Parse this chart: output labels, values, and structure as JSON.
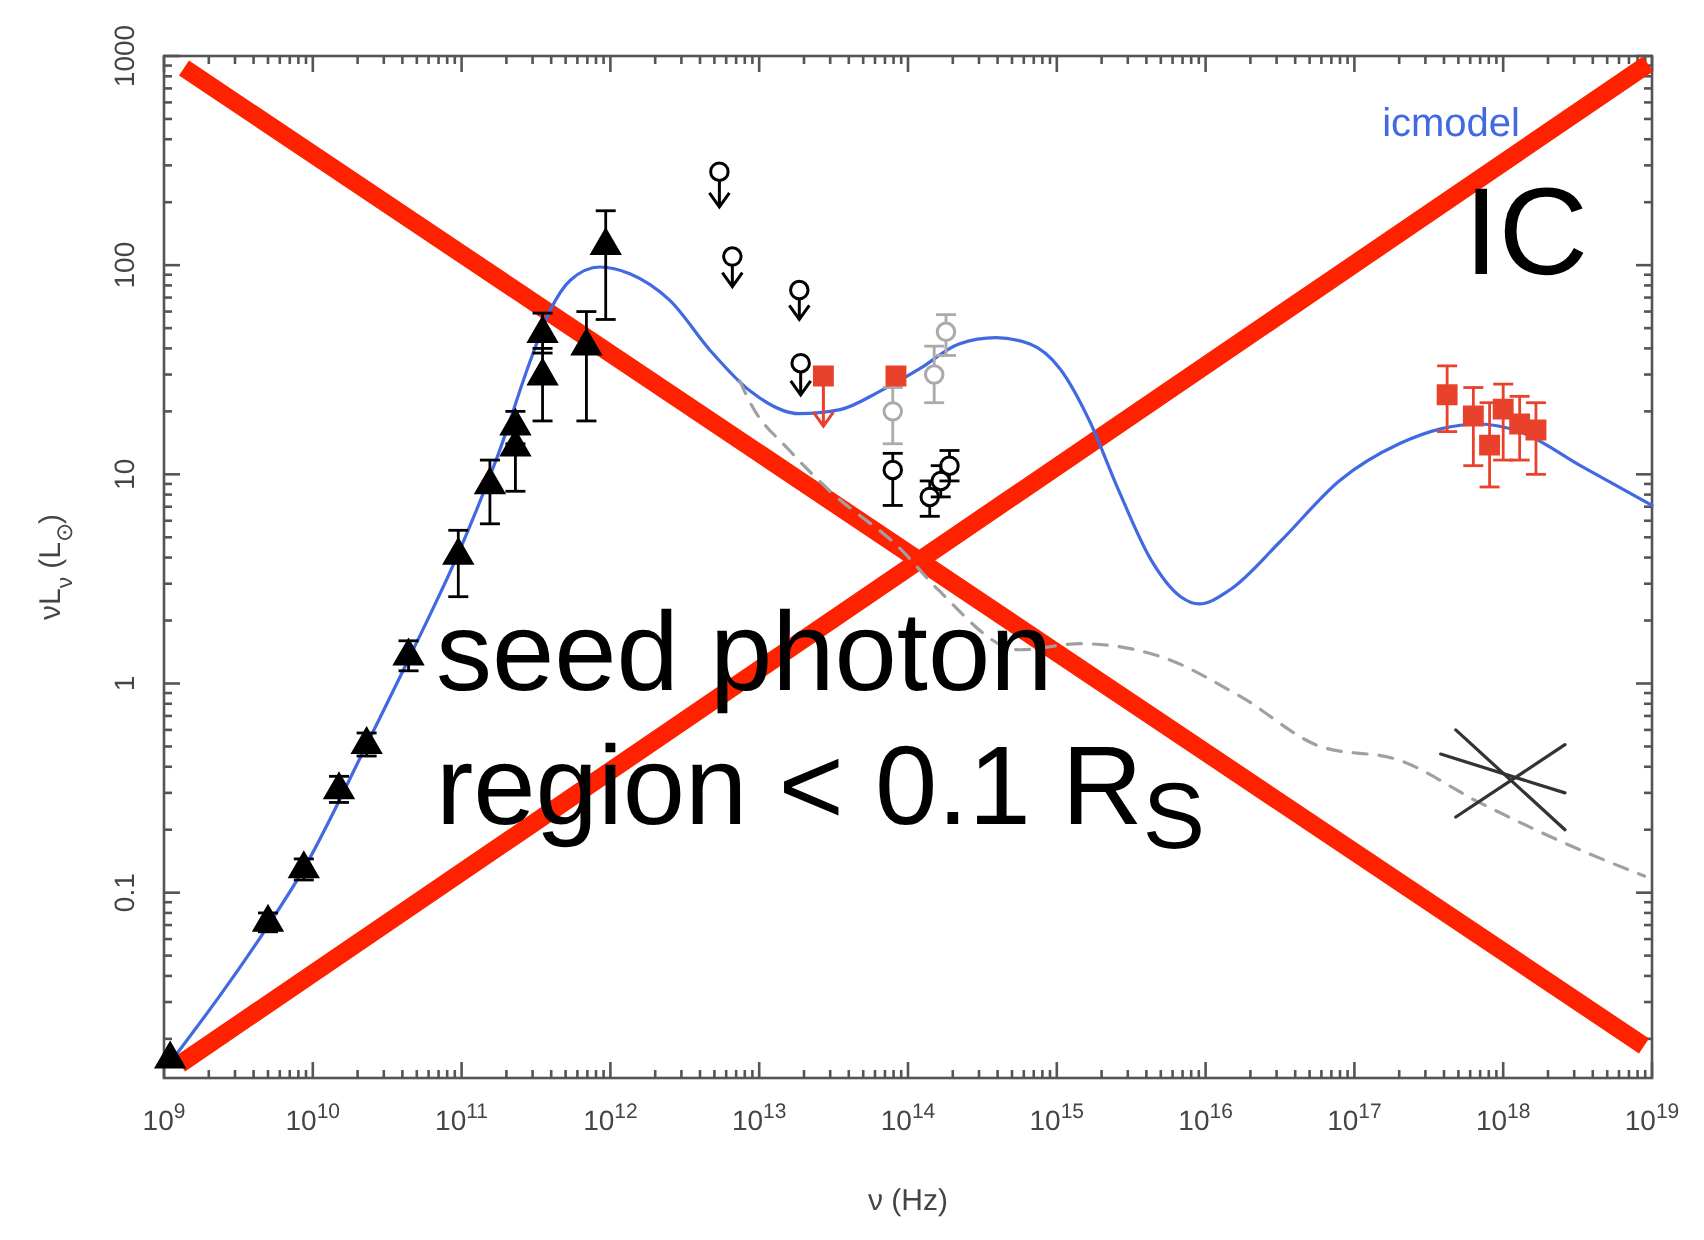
{
  "chart_data": {
    "type": "scatter",
    "xlabel": "ν (Hz)",
    "ylabel": "νL$_{ν}$ (L$_{⊙}$)",
    "log": "xy",
    "grid": false,
    "xlim": [
      1000000000.0,
      1e+19
    ],
    "ylim": [
      0.013,
      1000
    ],
    "xticks": [
      {
        "value": 1000000000.0,
        "label": "10$^{9}$"
      },
      {
        "value": 10000000000.0,
        "label": "10$^{10}$"
      },
      {
        "value": 100000000000.0,
        "label": "10$^{11}$"
      },
      {
        "value": 1000000000000.0,
        "label": "10$^{12}$"
      },
      {
        "value": 10000000000000.0,
        "label": "10$^{13}$"
      },
      {
        "value": 100000000000000.0,
        "label": "10$^{14}$"
      },
      {
        "value": 1000000000000000.0,
        "label": "10$^{15}$"
      },
      {
        "value": 1e+16,
        "label": "10$^{16}$"
      },
      {
        "value": 1e+17,
        "label": "10$^{17}$"
      },
      {
        "value": 1e+18,
        "label": "10$^{18}$"
      },
      {
        "value": 1e+19,
        "label": "10$^{19}$"
      },
      {
        "value": 2000000000.0,
        "label": null
      },
      {
        "value": 3000000000.0,
        "label": null
      },
      {
        "value": 4000000000.0,
        "label": null
      },
      {
        "value": 5000000000.0,
        "label": null
      },
      {
        "value": 6000000000.0,
        "label": null
      },
      {
        "value": 7000000000.0,
        "label": null
      },
      {
        "value": 8000000000.0,
        "label": null
      },
      {
        "value": 9000000000.0,
        "label": null
      },
      {
        "value": 20000000000.0,
        "label": null
      },
      {
        "value": 30000000000.0,
        "label": null
      },
      {
        "value": 40000000000.0,
        "label": null
      },
      {
        "value": 50000000000.0,
        "label": null
      },
      {
        "value": 60000000000.0,
        "label": null
      },
      {
        "value": 70000000000.0,
        "label": null
      },
      {
        "value": 80000000000.0,
        "label": null
      },
      {
        "value": 90000000000.0,
        "label": null
      },
      {
        "value": 200000000000.0,
        "label": null
      },
      {
        "value": 300000000000.0,
        "label": null
      },
      {
        "value": 400000000000.0,
        "label": null
      },
      {
        "value": 500000000000.0,
        "label": null
      },
      {
        "value": 600000000000.0,
        "label": null
      },
      {
        "value": 700000000000.0,
        "label": null
      },
      {
        "value": 800000000000.0,
        "label": null
      },
      {
        "value": 900000000000.0,
        "label": null
      },
      {
        "value": 2000000000000.0,
        "label": null
      },
      {
        "value": 3000000000000.0,
        "label": null
      },
      {
        "value": 4000000000000.0,
        "label": null
      },
      {
        "value": 5000000000000.0,
        "label": null
      },
      {
        "value": 6000000000000.0,
        "label": null
      },
      {
        "value": 7000000000000.0,
        "label": null
      },
      {
        "value": 8000000000000.0,
        "label": null
      },
      {
        "value": 9000000000000.0,
        "label": null
      },
      {
        "value": 20000000000000.0,
        "label": null
      },
      {
        "value": 30000000000000.0,
        "label": null
      },
      {
        "value": 40000000000000.0,
        "label": null
      },
      {
        "value": 50000000000000.0,
        "label": null
      },
      {
        "value": 60000000000000.0,
        "label": null
      },
      {
        "value": 70000000000000.0,
        "label": null
      },
      {
        "value": 80000000000000.0,
        "label": null
      },
      {
        "value": 90000000000000.0,
        "label": null
      },
      {
        "value": 200000000000000.0,
        "label": null
      },
      {
        "value": 300000000000000.0,
        "label": null
      },
      {
        "value": 400000000000000.0,
        "label": null
      },
      {
        "value": 500000000000000.0,
        "label": null
      },
      {
        "value": 600000000000000.0,
        "label": null
      },
      {
        "value": 700000000000000.0,
        "label": null
      },
      {
        "value": 800000000000000.0,
        "label": null
      },
      {
        "value": 900000000000000.0,
        "label": null
      },
      {
        "value": 2000000000000000.0,
        "label": null
      },
      {
        "value": 3000000000000000.0,
        "label": null
      },
      {
        "value": 4000000000000000.0,
        "label": null
      },
      {
        "value": 5000000000000000.0,
        "label": null
      },
      {
        "value": 6000000000000000.0,
        "label": null
      },
      {
        "value": 7000000000000000.0,
        "label": null
      },
      {
        "value": 8000000000000000.0,
        "label": null
      },
      {
        "value": 9000000000000000.0,
        "label": null
      },
      {
        "value": 2e+16,
        "label": null
      },
      {
        "value": 3e+16,
        "label": null
      },
      {
        "value": 4e+16,
        "label": null
      },
      {
        "value": 5e+16,
        "label": null
      },
      {
        "value": 6e+16,
        "label": null
      },
      {
        "value": 7e+16,
        "label": null
      },
      {
        "value": 8e+16,
        "label": null
      },
      {
        "value": 9e+16,
        "label": null
      },
      {
        "value": 2e+17,
        "label": null
      },
      {
        "value": 3e+17,
        "label": null
      },
      {
        "value": 4e+17,
        "label": null
      },
      {
        "value": 5e+17,
        "label": null
      },
      {
        "value": 6e+17,
        "label": null
      },
      {
        "value": 7e+17,
        "label": null
      },
      {
        "value": 8e+17,
        "label": null
      },
      {
        "value": 9e+17,
        "label": null
      },
      {
        "value": 2e+18,
        "label": null
      },
      {
        "value": 3e+18,
        "label": null
      },
      {
        "value": 4e+18,
        "label": null
      },
      {
        "value": 5e+18,
        "label": null
      },
      {
        "value": 6e+18,
        "label": null
      },
      {
        "value": 7e+18,
        "label": null
      },
      {
        "value": 8e+18,
        "label": null
      },
      {
        "value": 9e+18,
        "label": null
      }
    ],
    "yticks": [
      0.1,
      1,
      10,
      100,
      1000,
      {
        "value": 0.02,
        "label": null
      },
      {
        "value": 0.03,
        "label": null
      },
      {
        "value": 0.04,
        "label": null
      },
      {
        "value": 0.05,
        "label": null
      },
      {
        "value": 0.06,
        "label": null
      },
      {
        "value": 0.07,
        "label": null
      },
      {
        "value": 0.08,
        "label": null
      },
      {
        "value": 0.09,
        "label": null
      },
      {
        "value": 0.2,
        "label": null
      },
      {
        "value": 0.3,
        "label": null
      },
      {
        "value": 0.4,
        "label": null
      },
      {
        "value": 0.5,
        "label": null
      },
      {
        "value": 0.6,
        "label": null
      },
      {
        "value": 0.7,
        "label": null
      },
      {
        "value": 0.8,
        "label": null
      },
      {
        "value": 0.9,
        "label": null
      },
      {
        "value": 2,
        "label": null
      },
      {
        "value": 3,
        "label": null
      },
      {
        "value": 4,
        "label": null
      },
      {
        "value": 5,
        "label": null
      },
      {
        "value": 6,
        "label": null
      },
      {
        "value": 7,
        "label": null
      },
      {
        "value": 8,
        "label": null
      },
      {
        "value": 9,
        "label": null
      },
      {
        "value": 20,
        "label": null
      },
      {
        "value": 30,
        "label": null
      },
      {
        "value": 40,
        "label": null
      },
      {
        "value": 50,
        "label": null
      },
      {
        "value": 60,
        "label": null
      },
      {
        "value": 70,
        "label": null
      },
      {
        "value": 80,
        "label": null
      },
      {
        "value": 90,
        "label": null
      },
      {
        "value": 200,
        "label": null
      },
      {
        "value": 300,
        "label": null
      },
      {
        "value": 400,
        "label": null
      },
      {
        "value": 500,
        "label": null
      },
      {
        "value": 600,
        "label": null
      },
      {
        "value": 700,
        "label": null
      },
      {
        "value": 800,
        "label": null
      },
      {
        "value": 900,
        "label": null
      }
    ],
    "annotations": [
      "IC",
      "seed photon region < 0.1 R$_{S}$"
    ],
    "series": [
      {
        "type": "line",
        "name": "icmodel",
        "color": "#4169e1",
        "line_style": "solid",
        "x": [
          1070000000.0,
          5100000000.0,
          8700000000.0,
          23000000000.0,
          45000000000.0,
          98000000000.0,
          180000000000.0,
          290000000000.0,
          390000000000.0,
          540000000000.0,
          850000000000.0,
          1350000000000.0,
          2500000000000.0,
          4700000000000.0,
          8700000000000.0,
          18600000000000.0,
          35000000000000.0,
          65000000000000.0,
          120000000000000.0,
          220000000000000.0,
          390000000000000.0,
          660000000000000.0,
          1050000000000000.0,
          1660000000000000.0,
          2600000000000000.0,
          4300000000000000.0,
          6800000000000000.0,
          9100000000000000.0,
          1.45e+16,
          3.2e+16,
          7.9e+16,
          2e+17,
          3.8e+17,
          6.9e+17,
          1.29e+18,
          3.3e+18,
          1e+19
        ],
        "values": [
          0.015,
          0.071,
          0.13,
          0.51,
          1.35,
          4.4,
          13,
          35,
          60,
          85,
          98,
          91,
          68,
          39,
          25,
          19.5,
          20.4,
          25,
          32,
          42,
          45,
          42,
          32,
          18,
          8.4,
          3.9,
          2.6,
          2.4,
          2.8,
          4.8,
          9.3,
          14,
          16.5,
          17.4,
          16,
          11,
          7.1
        ]
      },
      {
        "type": "line",
        "color": "#a0a0a0",
        "line_style": "dashed",
        "x": [
          7400000000000.0,
          8700000000000.0,
          16000000000000.0,
          30000000000000.0,
          89000000000000.0,
          160000000000000.0,
          560000000000000.0,
          1450000000000000.0,
          4900000000000000.0,
          1.7e+16,
          5.9e+16,
          2e+17,
          6.9e+17,
          3.3e+18,
          8.9e+18
        ],
        "values": [
          28,
          22,
          13,
          8.3,
          4.4,
          2.8,
          1.45,
          1.55,
          1.35,
          0.87,
          0.5,
          0.43,
          0.27,
          0.16,
          0.12
        ]
      },
      {
        "type": "line",
        "color": "#333333",
        "line_style": "solid",
        "x": [
          4.8e+17,
          2.6e+18
        ],
        "values": [
          0.6,
          0.2
        ]
      },
      {
        "type": "line",
        "color": "#333333",
        "line_style": "solid",
        "x": [
          4.8e+17,
          2.6e+18
        ],
        "values": [
          0.23,
          0.51
        ]
      },
      {
        "type": "line",
        "color": "#333333",
        "line_style": "solid",
        "x": [
          3.8e+17,
          2.6e+18
        ],
        "values": [
          0.46,
          0.3
        ]
      },
      {
        "color": "#000000",
        "marker": "triangle",
        "x": [
          1100000000.0,
          5000000000.0,
          8700000000.0,
          15000000000.0,
          23000000000.0,
          44000000000.0,
          95000000000.0,
          155000000000.0,
          230000000000.0,
          230000000000.0,
          350000000000.0,
          350000000000.0,
          690000000000.0,
          930000000000.0
        ],
        "values": [
          0.016,
          0.072,
          0.13,
          0.31,
          0.51,
          1.35,
          4.1,
          8.9,
          17,
          13.5,
          47,
          29.5,
          41,
          124
        ],
        "errors": [
          null,
          [
            0.065,
            0.08
          ],
          [
            0.115,
            0.145
          ],
          [
            0.27,
            0.36
          ],
          [
            0.45,
            0.58
          ],
          [
            1.15,
            1.6
          ],
          [
            2.6,
            5.4
          ],
          [
            5.8,
            11.7
          ],
          [
            14,
            20
          ],
          [
            8.3,
            16
          ],
          [
            38,
            59
          ],
          [
            18,
            40
          ],
          [
            18,
            60
          ],
          [
            55,
            182
          ]
        ]
      },
      {
        "color": "#000000",
        "marker": "circle",
        "x": [
          5400000000000.0,
          6600000000000.0,
          18600000000000.0,
          19000000000000.0
        ],
        "values": [
          280,
          110,
          76,
          34
        ],
        "errors": [
          [
            190,
            280
          ],
          [
            79,
            110
          ],
          [
            55,
            76
          ],
          [
            24,
            34
          ]
        ]
      },
      {
        "color": "#000000",
        "marker": "circle",
        "x": [
          79000000000000.0,
          140000000000000.0,
          166000000000000.0,
          190000000000000.0
        ],
        "values": [
          10.5,
          7.8,
          9.3,
          11
        ],
        "errors": [
          [
            7.1,
            12.6
          ],
          [
            6.3,
            9.3
          ],
          [
            7.8,
            11
          ],
          [
            9.3,
            13
          ]
        ]
      },
      {
        "color": "#aaaaaa",
        "marker": "circle",
        "x": [
          79000000000000.0,
          150000000000000.0,
          180000000000000.0
        ],
        "values": [
          20,
          30,
          48
        ],
        "errors": [
          [
            14,
            26
          ],
          [
            22,
            41
          ],
          [
            37,
            58
          ]
        ]
      },
      {
        "color": "#e8412c",
        "marker": "square",
        "x": [
          27000000000000.0,
          83000000000000.0
        ],
        "values": [
          29.5,
          29.5
        ],
        "errors": [
          [
            17,
            29.5
          ],
          null
        ]
      },
      {
        "color": "#e8412c",
        "marker": "square",
        "x": [
          4.2e+17,
          6.3e+17,
          8.1e+17,
          1e+18,
          1.29e+18,
          1.66e+18
        ],
        "values": [
          24,
          19,
          13.8,
          20.5,
          17.4,
          16.3
        ],
        "errors": [
          [
            16,
            33
          ],
          [
            11,
            26
          ],
          [
            8.7,
            22
          ],
          [
            11.7,
            27
          ],
          [
            11.7,
            23.6
          ],
          [
            10,
            22
          ]
        ]
      }
    ]
  }
}
